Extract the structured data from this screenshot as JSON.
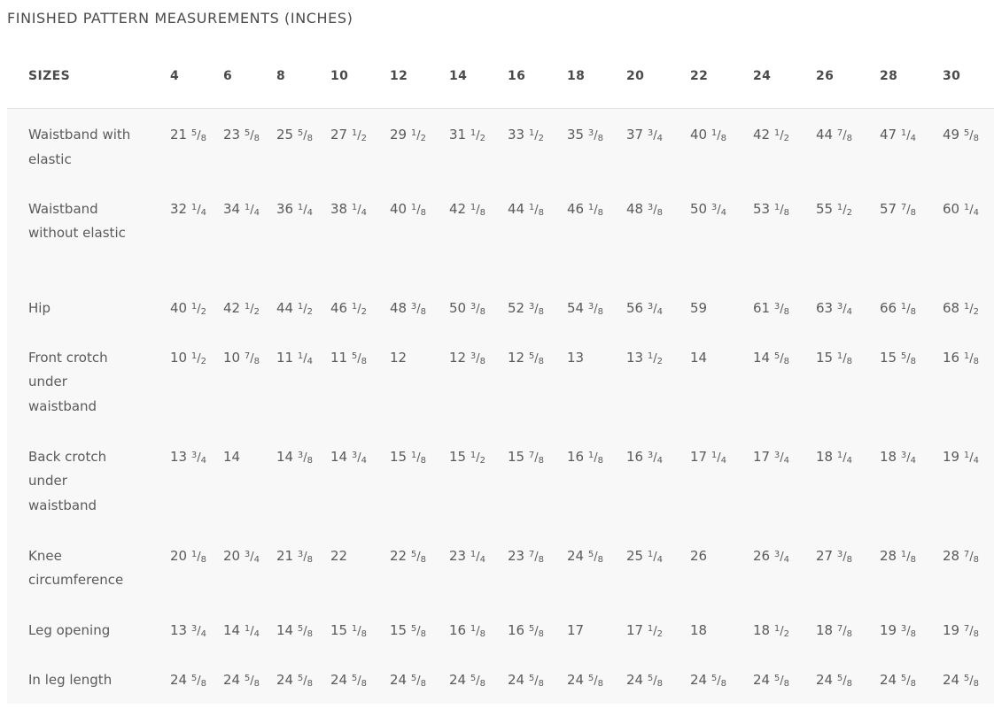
{
  "title": "FINISHED PATTERN MEASUREMENTS (INCHES)",
  "table": {
    "header_label": "SIZES",
    "sizes": [
      "4",
      "6",
      "8",
      "10",
      "12",
      "14",
      "16",
      "18",
      "20",
      "22",
      "24",
      "26",
      "28",
      "30"
    ],
    "rows": [
      {
        "label": "Waistband with elastic",
        "values": [
          "21 5/8",
          "23 5/8",
          "25 5/8",
          "27 1/2",
          "29 1/2",
          "31 1/2",
          "33 1/2",
          "35 3/8",
          "37 3/4",
          "40 1/8",
          "42 1/2",
          "44 7/8",
          "47 1/4",
          "49 5/8"
        ]
      },
      {
        "label": "Waistband without elastic",
        "values": [
          "32 1/4",
          "34 1/4",
          "36 1/4",
          "38 1/4",
          "40 1/8",
          "42 1/8",
          "44 1/8",
          "46 1/8",
          "48 3/8",
          "50 3/4",
          "53 1/8",
          "55 1/2",
          "57 7/8",
          "60 1/4"
        ]
      },
      {
        "label": "Hip",
        "values": [
          "40 1/2",
          "42 1/2",
          "44 1/2",
          "46 1/2",
          "48 3/8",
          "50 3/8",
          "52 3/8",
          "54 3/8",
          "56 3/4",
          "59",
          "61 3/8",
          "63 3/4",
          "66 1/8",
          "68 1/2"
        ]
      },
      {
        "label": "Front crotch under waistband",
        "values": [
          "10 1/2",
          "10 7/8",
          "11 1/4",
          "11 5/8",
          "12",
          "12 3/8",
          "12 5/8",
          "13",
          "13 1/2",
          "14",
          "14 5/8",
          "15 1/8",
          "15 5/8",
          "16 1/8"
        ]
      },
      {
        "label": "Back crotch under waistband",
        "values": [
          "13 3/4",
          "14",
          "14 3/8",
          "14 3/4",
          "15 1/8",
          "15 1/2",
          "15 7/8",
          "16 1/8",
          "16 3/4",
          "17 1/4",
          "17 3/4",
          "18 1/4",
          "18 3/4",
          "19 1/4"
        ]
      },
      {
        "label": "Knee circumference",
        "values": [
          "20 1/8",
          "20 3/4",
          "21 3/8",
          "22",
          "22 5/8",
          "23 1/4",
          "23 7/8",
          "24 5/8",
          "25 1/4",
          "26",
          "26 3/4",
          "27 3/8",
          "28 1/8",
          "28 7/8"
        ]
      },
      {
        "label": "Leg opening",
        "values": [
          "13 3/4",
          "14 1/4",
          "14 5/8",
          "15 1/8",
          "15 5/8",
          "16 1/8",
          "16 5/8",
          "17",
          "17 1/2",
          "18",
          "18 1/2",
          "18 7/8",
          "19 3/8",
          "19 7/8"
        ]
      },
      {
        "label": "In leg length",
        "values": [
          "24 5/8",
          "24 5/8",
          "24 5/8",
          "24 5/8",
          "24 5/8",
          "24 5/8",
          "24 5/8",
          "24 5/8",
          "24 5/8",
          "24 5/8",
          "24 5/8",
          "24 5/8",
          "24 5/8",
          "24 5/8"
        ]
      }
    ]
  }
}
